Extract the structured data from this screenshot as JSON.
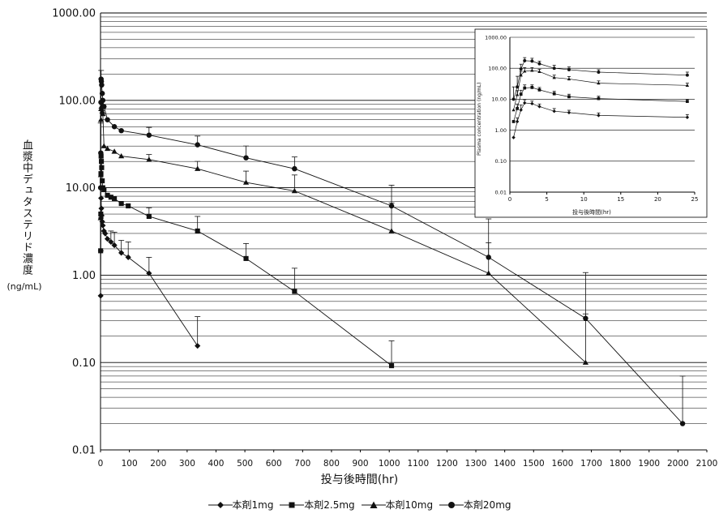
{
  "chart_data": [
    {
      "type": "line",
      "y_scale": "log",
      "ylim": [
        0.01,
        1000
      ],
      "xlim": [
        0,
        2100
      ],
      "ylabel": "血漿中デュタステリド濃度",
      "ylabel_unit": "(ng/mL)",
      "xlabel": "投与後時間(hr)",
      "grid": true,
      "legend_position": "bottom",
      "y_ticks": [
        "0.01",
        "0.10",
        "1.00",
        "10.00",
        "100.00",
        "1000.00"
      ],
      "x_ticks": [
        "0",
        "100",
        "200",
        "300",
        "400",
        "500",
        "600",
        "700",
        "800",
        "900",
        "1000",
        "1100",
        "1200",
        "1300",
        "1400",
        "1500",
        "1600",
        "1700",
        "1800",
        "1900",
        "2000",
        "2100"
      ],
      "series": [
        {
          "name": "本剤1mg",
          "marker": "diamond",
          "x": [
            0.5,
            1,
            1.5,
            2,
            3,
            4,
            6,
            8,
            12,
            16,
            24,
            36,
            48,
            72,
            96,
            168,
            336
          ],
          "y": [
            0.58,
            1.9,
            4.5,
            7.6,
            5.8,
            4.8,
            4.1,
            3.7,
            3.2,
            3.0,
            2.6,
            2.4,
            2.2,
            1.8,
            1.6,
            1.05,
            0.155
          ],
          "err": [
            0,
            0,
            0,
            0,
            0,
            0,
            0,
            0,
            0,
            0,
            0,
            0.8,
            0.9,
            0.7,
            0.8,
            0.55,
            0.18
          ]
        },
        {
          "name": "本剤2.5mg",
          "marker": "square",
          "x": [
            0.5,
            1,
            1.5,
            2,
            3,
            4,
            6,
            8,
            12,
            24,
            36,
            48,
            72,
            96,
            168,
            336,
            504,
            672,
            1008
          ],
          "y": [
            1.9,
            5.0,
            14.5,
            23,
            20,
            17,
            12,
            10,
            9.5,
            8.2,
            7.8,
            7.5,
            6.6,
            6.2,
            4.7,
            3.2,
            1.55,
            0.65,
            0.092
          ],
          "err": [
            0,
            0,
            0,
            0,
            0,
            0,
            0,
            0,
            0,
            0,
            0,
            0,
            0,
            0,
            1.2,
            1.5,
            0.75,
            0.55,
            0.085
          ]
        },
        {
          "name": "本剤10mg",
          "marker": "triangle",
          "x": [
            0.5,
            1,
            1.5,
            2,
            3,
            4,
            6,
            8,
            12,
            24,
            48,
            72,
            168,
            336,
            504,
            672,
            1008,
            1344,
            1680
          ],
          "y": [
            4.5,
            14,
            60,
            80,
            85,
            80,
            75,
            70,
            30,
            28,
            26,
            23,
            21,
            16.5,
            11.5,
            9.2,
            3.2,
            1.05,
            0.1
          ],
          "err": [
            0,
            0,
            0,
            0,
            0,
            0,
            0,
            0,
            0,
            0,
            0,
            0,
            3,
            3.5,
            4,
            4.8,
            3.5,
            1.3,
            0.26
          ]
        },
        {
          "name": "本剤20mg",
          "marker": "circle",
          "x": [
            0.5,
            1,
            1.5,
            2,
            3,
            4,
            6,
            8,
            12,
            24,
            48,
            72,
            168,
            336,
            504,
            672,
            1008,
            1344,
            1680,
            2016
          ],
          "y": [
            10,
            25,
            95,
            175,
            165,
            150,
            120,
            100,
            85,
            60,
            50,
            45,
            40,
            31,
            22,
            16.5,
            6.2,
            1.6,
            0.32,
            0.02
          ],
          "err": [
            45,
            0,
            0,
            45,
            0,
            0,
            0,
            0,
            0,
            0,
            0,
            0,
            9,
            8,
            8,
            6,
            4.5,
            2.8,
            0.75,
            0.05
          ]
        }
      ]
    },
    {
      "type": "line",
      "y_scale": "log",
      "ylim": [
        0.01,
        1000
      ],
      "xlim": [
        0,
        25
      ],
      "ylabel": "Plasma concentration (ng/mL)",
      "xlabel": "投与後時間(hr)",
      "grid": true,
      "y_ticks": [
        "0.01",
        "0.10",
        "1.00",
        "10.00",
        "100.00",
        "1000.00"
      ],
      "x_ticks": [
        "0",
        "5",
        "10",
        "15",
        "20",
        "25"
      ],
      "series": [
        {
          "marker": "diamond",
          "x": [
            0.5,
            1,
            1.5,
            2,
            3,
            4,
            6,
            8,
            12,
            24
          ],
          "y": [
            0.58,
            1.9,
            4.5,
            7.6,
            7.2,
            5.8,
            4.1,
            3.7,
            3.0,
            2.6
          ],
          "err": [
            0,
            0.6,
            2.0,
            2.0,
            1.5,
            1.2,
            0.9,
            0.7,
            0.6,
            0.6
          ]
        },
        {
          "marker": "square",
          "x": [
            0.5,
            1,
            1.5,
            2,
            3,
            4,
            6,
            8,
            12,
            24
          ],
          "y": [
            1.9,
            5.0,
            14.5,
            23,
            24,
            20,
            15,
            12,
            10.5,
            8.5
          ],
          "err": [
            0,
            2.0,
            5.0,
            6.0,
            5.0,
            4.0,
            3.0,
            2.5,
            2.0,
            1.5
          ]
        },
        {
          "marker": "triangle",
          "x": [
            0.5,
            1,
            1.5,
            2,
            3,
            4,
            6,
            8,
            12,
            24
          ],
          "y": [
            4.5,
            14,
            60,
            80,
            85,
            78,
            50,
            45,
            33,
            28
          ],
          "err": [
            0,
            5,
            20,
            25,
            20,
            15,
            10,
            9,
            6,
            5
          ]
        },
        {
          "marker": "circle",
          "x": [
            0.5,
            1,
            1.5,
            2,
            3,
            4,
            6,
            8,
            12,
            24
          ],
          "y": [
            10,
            25,
            95,
            175,
            170,
            140,
            100,
            90,
            75,
            60
          ],
          "err": [
            15,
            30,
            40,
            45,
            40,
            30,
            25,
            20,
            15,
            15
          ]
        }
      ]
    }
  ]
}
